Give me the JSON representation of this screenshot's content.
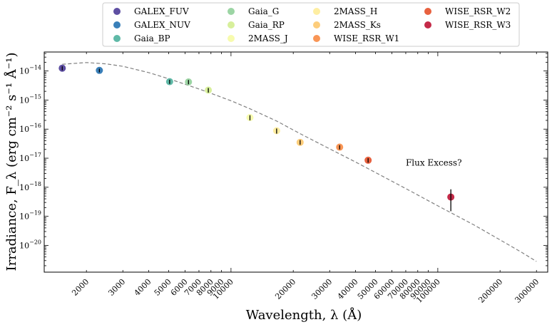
{
  "chart_data": {
    "type": "scatter",
    "xlabel": "Wavelength, λ (Å)",
    "ylabel": "Irradiance, F_λ (erg cm⁻² s⁻¹ Å⁻¹)",
    "x_scale": "log",
    "y_scale": "log",
    "xlim": [
      1250,
      340000
    ],
    "ylim": [
      1.2e-21,
      4.5e-14
    ],
    "grid": false,
    "legend_position": "top",
    "x_tick_labels": [
      "2000",
      "3000",
      "4000",
      "5000",
      "6000",
      "7000",
      "8000",
      "9000",
      "10000",
      "20000",
      "30000",
      "40000",
      "50000",
      "60000",
      "70000",
      "80000",
      "90000",
      "100000",
      "200000",
      "300000"
    ],
    "x_tick_values": [
      2000,
      3000,
      4000,
      5000,
      6000,
      7000,
      8000,
      9000,
      10000,
      20000,
      30000,
      40000,
      50000,
      60000,
      70000,
      80000,
      90000,
      100000,
      200000,
      300000
    ],
    "y_tick_values": [
      1e-20,
      1e-19,
      1e-18,
      1e-17,
      1e-16,
      1e-15,
      1e-14
    ],
    "series": [
      {
        "name": "GALEX_FUV",
        "color": "#5e4fa2",
        "x": 1528,
        "y": 1.25e-14,
        "yerr": [
          1.05e-14,
          1.45e-14
        ]
      },
      {
        "name": "GALEX_NUV",
        "color": "#3a80b9",
        "x": 2310,
        "y": 1.05e-14,
        "yerr": [
          9e-15,
          1.2e-14
        ]
      },
      {
        "name": "Gaia_BP",
        "color": "#5fb9a7",
        "x": 5050,
        "y": 4.3e-15,
        "yerr": [
          3.6e-15,
          5e-15
        ]
      },
      {
        "name": "Gaia_G",
        "color": "#9cd5a4",
        "x": 6230,
        "y": 4.2e-15,
        "yerr": [
          3.5e-15,
          4.9e-15
        ]
      },
      {
        "name": "Gaia_RP",
        "color": "#d7ef9b",
        "x": 7770,
        "y": 2.2e-15,
        "yerr": [
          1.8e-15,
          2.6e-15
        ]
      },
      {
        "name": "2MASS_J",
        "color": "#f7fbae",
        "x": 12350,
        "y": 2.5e-16,
        "yerr": [
          2e-16,
          3e-16
        ]
      },
      {
        "name": "2MASS_H",
        "color": "#feeea2",
        "x": 16620,
        "y": 8.8e-17,
        "yerr": [
          7e-17,
          1.05e-16
        ]
      },
      {
        "name": "2MASS_Ks",
        "color": "#fdcd7b",
        "x": 21590,
        "y": 3.5e-17,
        "yerr": [
          2.9e-17,
          4.2e-17
        ]
      },
      {
        "name": "WISE_RSR_W1",
        "color": "#f99656",
        "x": 33526,
        "y": 2.4e-17,
        "yerr": [
          2e-17,
          2.8e-17
        ]
      },
      {
        "name": "WISE_RSR_W2",
        "color": "#e8613f",
        "x": 46028,
        "y": 8.5e-18,
        "yerr": [
          7e-18,
          1e-17
        ]
      },
      {
        "name": "WISE_RSR_W3",
        "color": "#c42a48",
        "x": 115608,
        "y": 4.6e-19,
        "yerr": [
          1.5e-19,
          8.5e-19
        ]
      }
    ],
    "model_curve": {
      "style": "dashed",
      "color": "#808080",
      "points": [
        [
          1528,
          1.7e-14
        ],
        [
          2000,
          1.95e-14
        ],
        [
          2500,
          1.75e-14
        ],
        [
          3000,
          1.45e-14
        ],
        [
          4000,
          8.8e-15
        ],
        [
          5000,
          5.4e-15
        ],
        [
          6000,
          3.5e-15
        ],
        [
          7000,
          2.4e-15
        ],
        [
          8000,
          1.7e-15
        ],
        [
          9000,
          1.25e-15
        ],
        [
          10000,
          9.5e-16
        ],
        [
          12350,
          5e-16
        ],
        [
          16620,
          1.9e-16
        ],
        [
          21590,
          7e-17
        ],
        [
          30000,
          2.1e-17
        ],
        [
          40000,
          7.4e-18
        ],
        [
          50000,
          3.2e-18
        ],
        [
          70000,
          9e-19
        ],
        [
          100000,
          2.3e-19
        ],
        [
          150000,
          5e-20
        ],
        [
          200000,
          1.55e-20
        ],
        [
          257000,
          5.5e-21
        ],
        [
          300000,
          2.8e-21
        ]
      ]
    },
    "annotations": [
      {
        "text": "Flux Excess?",
        "x": 70000,
        "y": 7e-18
      }
    ]
  }
}
